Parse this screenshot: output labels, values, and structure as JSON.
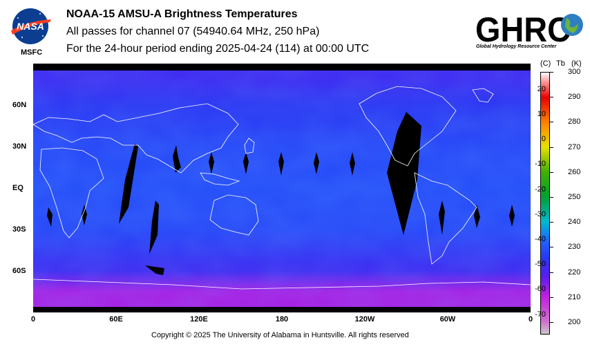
{
  "header": {
    "agency": "MSFC",
    "title": "NOAA-15 AMSU-A Brightness Temperatures",
    "subtitle": "All passes for channel 07 (54940.64 MHz, 250 hPa)",
    "period": "For the 24-hour period ending 2025-04-24 (114) at 00:00 UTC",
    "logo_left_text": "NASA",
    "logo_right_text": "GHRC",
    "logo_right_subtext": "Global Hydrology Resource Center"
  },
  "footer": {
    "copyright": "Copyright © 2025 The University of Alabama in Huntsville.  All rights reserved"
  },
  "chart_data": {
    "type": "heatmap",
    "projection": "equirectangular",
    "x_tick_labels": [
      "0",
      "60E",
      "120E",
      "180",
      "120W",
      "60W",
      "0"
    ],
    "x_tick_lon": [
      0,
      60,
      120,
      180,
      240,
      300,
      360
    ],
    "y_tick_labels": [
      "60N",
      "30N",
      "EQ",
      "30S",
      "60S"
    ],
    "y_tick_lat": [
      60,
      30,
      0,
      -30,
      -60
    ],
    "lon_range": [
      0,
      360
    ],
    "lat_range": [
      -90,
      90
    ],
    "missing_data_color": "#000000",
    "coastlines_color": "#ffffff",
    "field_description": {
      "latitude_band_tb_k": [
        {
          "lat": 80,
          "tb_k": 222
        },
        {
          "lat": 60,
          "tb_k": 225
        },
        {
          "lat": 30,
          "tb_k": 228
        },
        {
          "lat": 0,
          "tb_k": 229
        },
        {
          "lat": -30,
          "tb_k": 228
        },
        {
          "lat": -60,
          "tb_k": 222
        },
        {
          "lat": -75,
          "tb_k": 212
        }
      ]
    },
    "colorbar": {
      "label_c": "(C)",
      "label_k": "Tb",
      "label_k_unit": "(K)",
      "range_k": [
        195,
        300
      ],
      "ticks_k": [
        "300",
        "290",
        "280",
        "270",
        "260",
        "250",
        "240",
        "230",
        "220",
        "210",
        "200"
      ],
      "ticks_k_values": [
        300,
        290,
        280,
        270,
        260,
        250,
        240,
        230,
        220,
        210,
        200
      ],
      "ticks_c": [
        "20",
        "10",
        "0",
        "-10",
        "-20",
        "-30",
        "-40",
        "-50",
        "-60",
        "-70"
      ],
      "ticks_c_values": [
        20,
        10,
        0,
        -10,
        -20,
        -30,
        -40,
        -50,
        -60,
        -70
      ],
      "color_stops": [
        {
          "k": 195,
          "color": "#c8c8c8"
        },
        {
          "k": 200,
          "color": "#d070d0"
        },
        {
          "k": 210,
          "color": "#c020e0"
        },
        {
          "k": 218,
          "color": "#5a1df0"
        },
        {
          "k": 225,
          "color": "#2a34f2"
        },
        {
          "k": 232,
          "color": "#2060ff"
        },
        {
          "k": 240,
          "color": "#00b8d0"
        },
        {
          "k": 250,
          "color": "#00a030"
        },
        {
          "k": 260,
          "color": "#40b000"
        },
        {
          "k": 270,
          "color": "#e8e000"
        },
        {
          "k": 280,
          "color": "#ff8000"
        },
        {
          "k": 290,
          "color": "#e80000"
        },
        {
          "k": 296,
          "color": "#ff9090"
        },
        {
          "k": 300,
          "color": "#ffffff"
        }
      ]
    }
  }
}
